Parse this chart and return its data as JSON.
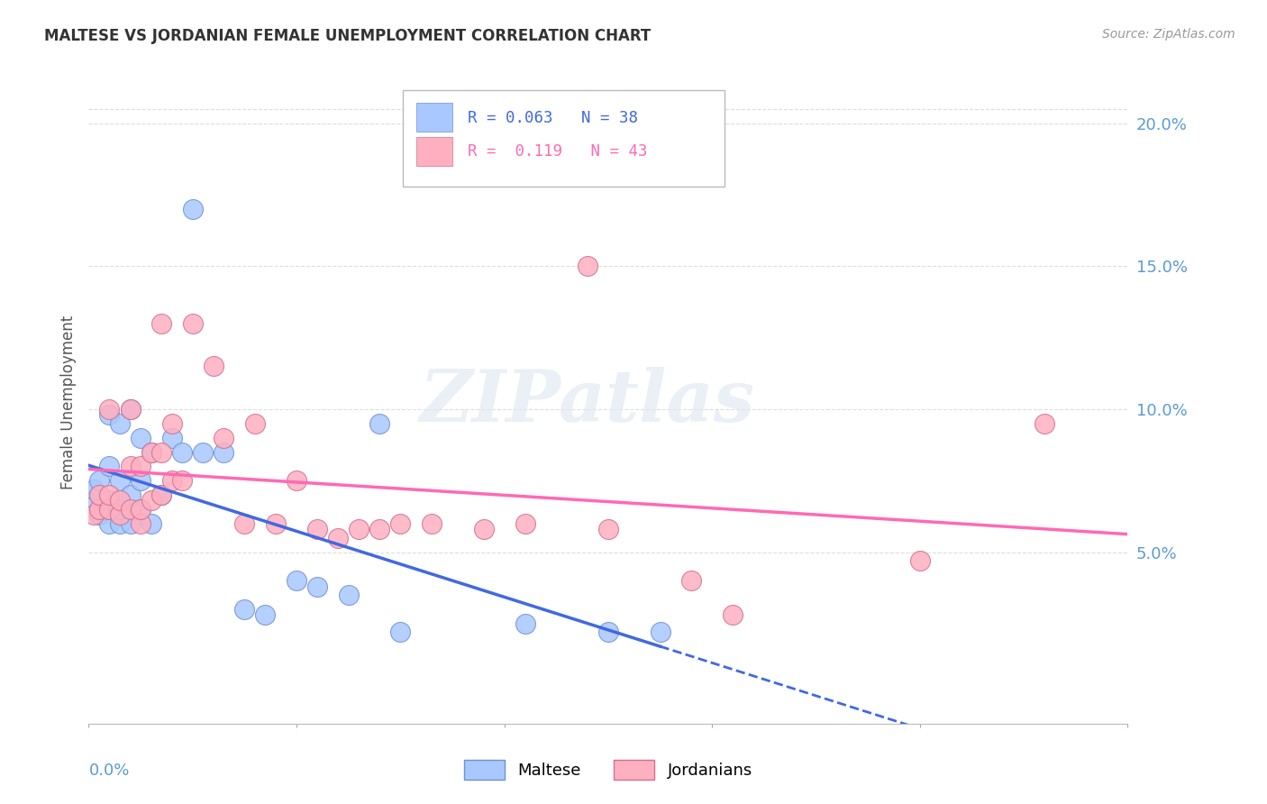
{
  "title": "MALTESE VS JORDANIAN FEMALE UNEMPLOYMENT CORRELATION CHART",
  "source": "Source: ZipAtlas.com",
  "ylabel": "Female Unemployment",
  "watermark": "ZIPatlas",
  "xlim": [
    0.0,
    0.1
  ],
  "ylim": [
    -0.01,
    0.215
  ],
  "ytick_vals": [
    0.05,
    0.1,
    0.15,
    0.2
  ],
  "ytick_labels": [
    "5.0%",
    "10.0%",
    "15.0%",
    "20.0%"
  ],
  "maltese_color": "#A8C8FF",
  "maltese_edge_color": "#7090D0",
  "jordanian_color": "#FFB0C0",
  "jordanian_edge_color": "#D07090",
  "maltese_line_color": "#4169E1",
  "jordanian_line_color": "#FF69B4",
  "axis_label_color": "#5B9BD5",
  "grid_color": "#DDDDDD",
  "maltese_scatter_x": [
    0.0005,
    0.0005,
    0.001,
    0.001,
    0.001,
    0.002,
    0.002,
    0.002,
    0.002,
    0.002,
    0.003,
    0.003,
    0.003,
    0.003,
    0.004,
    0.004,
    0.004,
    0.005,
    0.005,
    0.005,
    0.006,
    0.006,
    0.007,
    0.008,
    0.009,
    0.01,
    0.011,
    0.013,
    0.015,
    0.017,
    0.02,
    0.022,
    0.025,
    0.028,
    0.03,
    0.042,
    0.05,
    0.055
  ],
  "maltese_scatter_y": [
    0.068,
    0.072,
    0.063,
    0.07,
    0.075,
    0.06,
    0.065,
    0.068,
    0.08,
    0.098,
    0.06,
    0.065,
    0.075,
    0.095,
    0.06,
    0.07,
    0.1,
    0.065,
    0.075,
    0.09,
    0.06,
    0.085,
    0.07,
    0.09,
    0.085,
    0.17,
    0.085,
    0.085,
    0.03,
    0.028,
    0.04,
    0.038,
    0.035,
    0.095,
    0.022,
    0.025,
    0.022,
    0.022
  ],
  "jordanian_scatter_x": [
    0.0005,
    0.001,
    0.001,
    0.002,
    0.002,
    0.002,
    0.003,
    0.003,
    0.004,
    0.004,
    0.004,
    0.005,
    0.005,
    0.005,
    0.006,
    0.006,
    0.007,
    0.007,
    0.007,
    0.008,
    0.008,
    0.009,
    0.01,
    0.012,
    0.013,
    0.015,
    0.016,
    0.018,
    0.02,
    0.022,
    0.024,
    0.026,
    0.028,
    0.03,
    0.033,
    0.038,
    0.042,
    0.048,
    0.05,
    0.058,
    0.062,
    0.08,
    0.092
  ],
  "jordanian_scatter_y": [
    0.063,
    0.065,
    0.07,
    0.065,
    0.07,
    0.1,
    0.063,
    0.068,
    0.065,
    0.08,
    0.1,
    0.06,
    0.065,
    0.08,
    0.068,
    0.085,
    0.07,
    0.085,
    0.13,
    0.075,
    0.095,
    0.075,
    0.13,
    0.115,
    0.09,
    0.06,
    0.095,
    0.06,
    0.075,
    0.058,
    0.055,
    0.058,
    0.058,
    0.06,
    0.06,
    0.058,
    0.06,
    0.15,
    0.058,
    0.04,
    0.028,
    0.047,
    0.095
  ]
}
